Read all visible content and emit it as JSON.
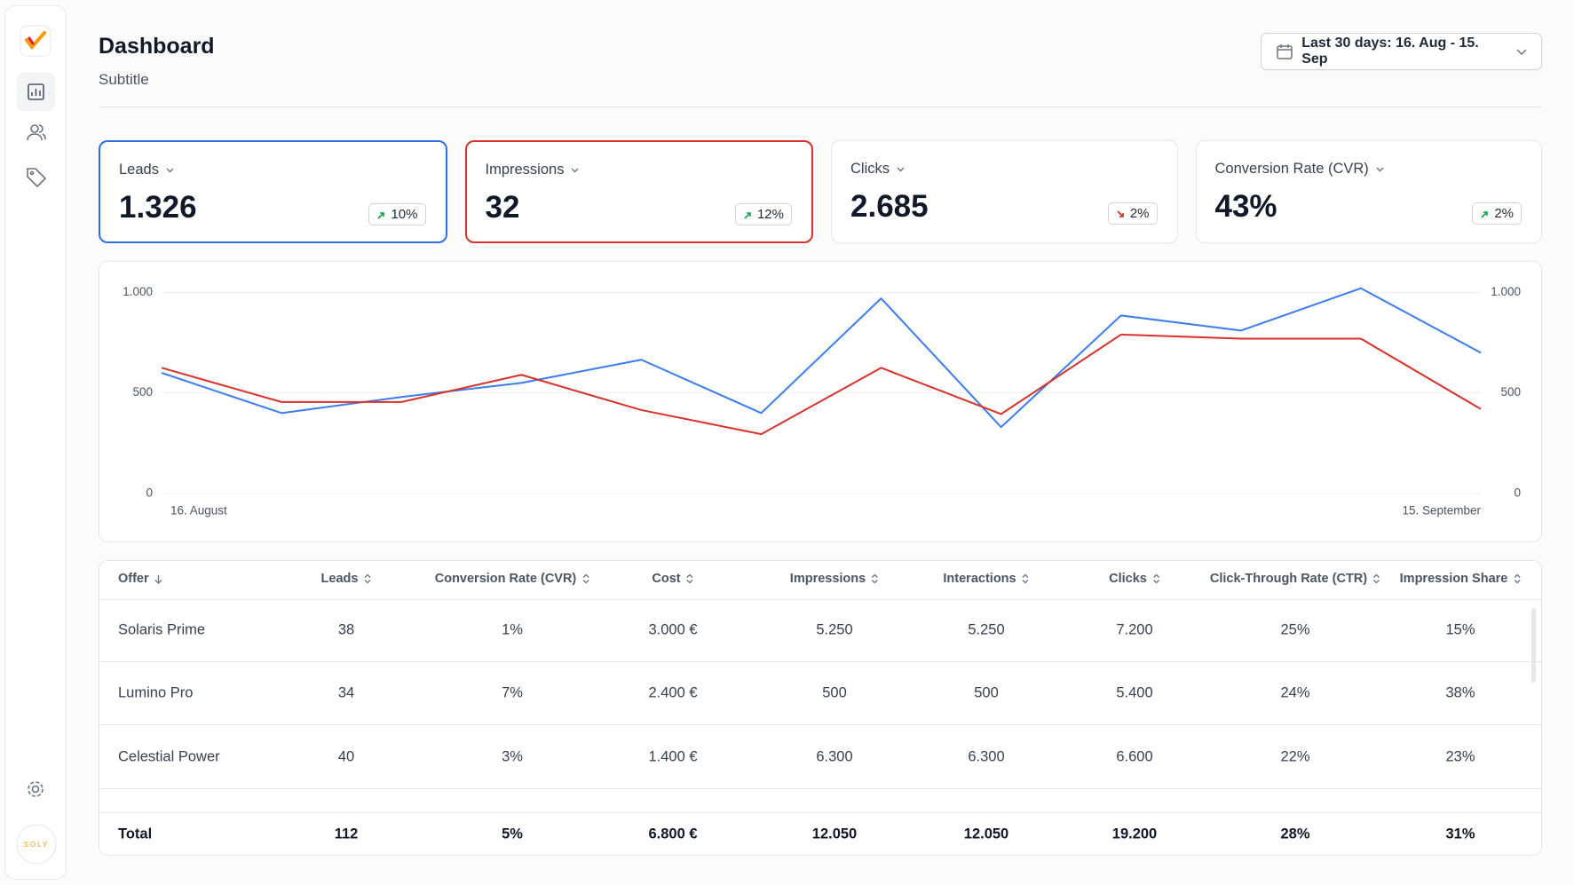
{
  "sidebar": {
    "brand": "SOLY"
  },
  "header": {
    "title": "Dashboard",
    "subtitle": "Subtitle",
    "date_range": "Last 30 days: 16. Aug - 15. Sep"
  },
  "kpis": [
    {
      "label": "Leads",
      "value": "1.326",
      "change": "10%",
      "trend": "up",
      "highlight": "#2f6fe4"
    },
    {
      "label": "Impressions",
      "value": "32",
      "change": "12%",
      "trend": "up",
      "highlight": "#d7322a"
    },
    {
      "label": "Clicks",
      "value": "2.685",
      "change": "2%",
      "trend": "down"
    },
    {
      "label": "Conversion Rate (CVR)",
      "value": "43%",
      "change": "2%",
      "trend": "up"
    }
  ],
  "chart_data": {
    "type": "line",
    "categories": [
      "16. August",
      null,
      null,
      null,
      null,
      null,
      null,
      null,
      null,
      null,
      null,
      "15. September"
    ],
    "series": [
      {
        "color": "#3b7ded",
        "values": [
          600,
          400,
          480,
          550,
          665,
          400,
          970,
          330,
          885,
          810,
          1020,
          700
        ]
      },
      {
        "color": "#d7322a",
        "axis": "y2",
        "values": [
          625,
          455,
          455,
          590,
          415,
          295,
          625,
          395,
          790,
          770,
          770,
          420
        ]
      }
    ],
    "ylim": [
      0,
      1050
    ],
    "yticks": [
      0,
      500,
      {
        "value": 1000,
        "label": "1.000"
      }
    ],
    "y2lim": [
      0,
      1050
    ],
    "y2ticks": [
      0,
      500,
      {
        "value": 1000,
        "label": "1.000"
      }
    ],
    "grid": true
  },
  "table": {
    "sort_column": 0,
    "columns": [
      "Offer",
      "Leads",
      "Conversion Rate (CVR)",
      "Cost",
      "Impressions",
      "Interactions",
      "Clicks",
      "Click-Through Rate (CTR)",
      "Impression Share"
    ],
    "rows": [
      [
        "Solaris Prime",
        "38",
        "1%",
        "3.000 €",
        "5.250",
        "5.250",
        "7.200",
        "25%",
        "15%"
      ],
      [
        "Lumino Pro",
        "34",
        "7%",
        "2.400 €",
        "500",
        "500",
        "5.400",
        "24%",
        "38%"
      ],
      [
        "Celestial Power",
        "40",
        "3%",
        "1.400 €",
        "6.300",
        "6.300",
        "6.600",
        "22%",
        "23%"
      ]
    ],
    "total": [
      "Total",
      "112",
      "5%",
      "6.800 €",
      "12.050",
      "12.050",
      "19.200",
      "28%",
      "31%"
    ]
  }
}
